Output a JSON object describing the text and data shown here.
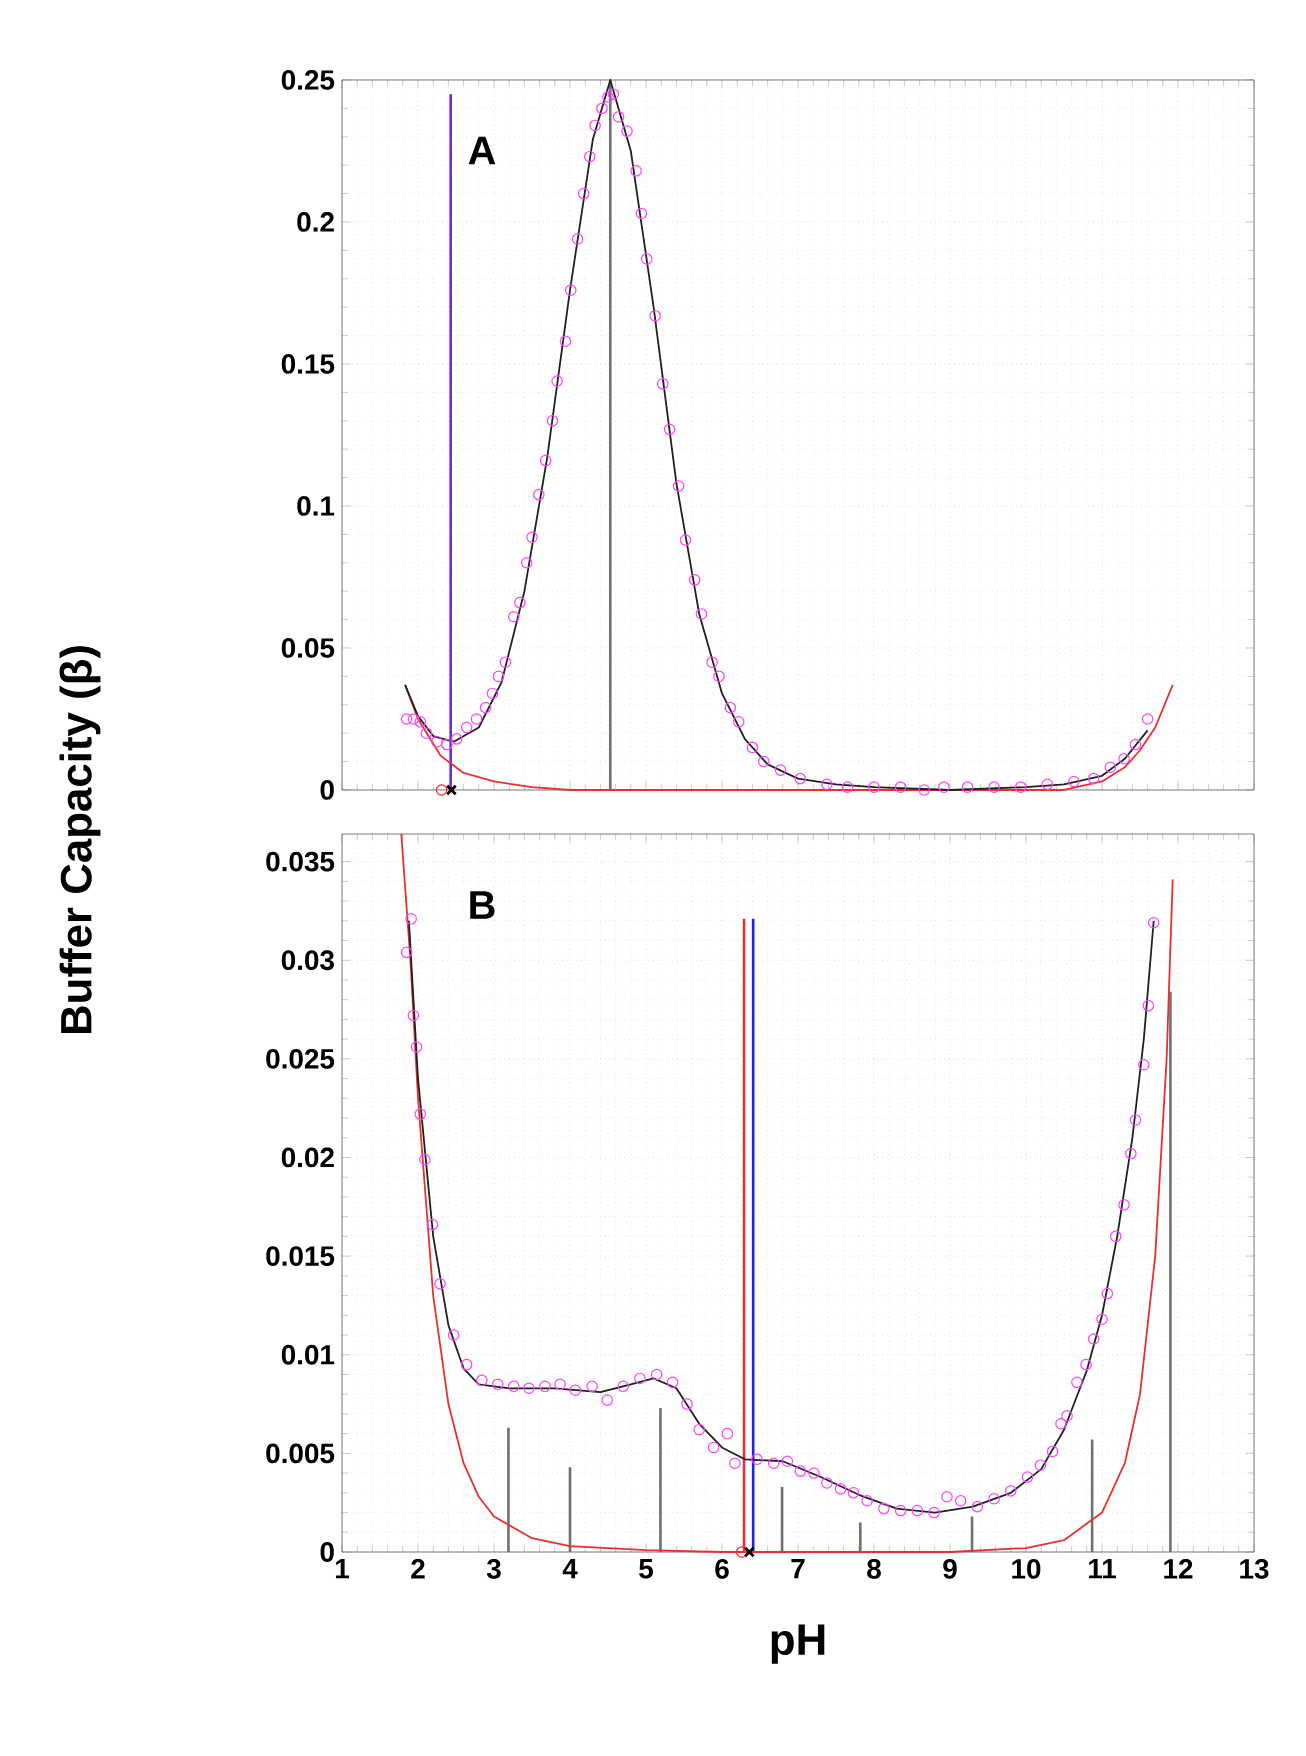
{
  "chart_data": [
    {
      "type": "scatter",
      "ylabel": "Buffer Capacity (β)",
      "annotations": [
        "A"
      ],
      "xlim": [
        1,
        13
      ],
      "ylim": [
        0,
        0.25
      ],
      "xticks": [
        1,
        2,
        3,
        4,
        5,
        6,
        7,
        8,
        9,
        10,
        11,
        12,
        13
      ],
      "yticks": [
        0,
        0.05,
        0.1,
        0.15,
        0.2,
        0.25
      ],
      "tick_labels": "y",
      "grid": true,
      "series": [
        {
          "type": "bar",
          "color": "#707070",
          "x": [
            4.53
          ],
          "values": [
            0.25
          ]
        },
        {
          "type": "bar",
          "color": "#6a30c8",
          "x": [
            2.43
          ],
          "values": [
            0.245
          ]
        },
        {
          "type": "line",
          "color": "#e83030",
          "x": [
            1.83,
            2.0,
            2.3,
            2.6,
            3.0,
            3.5,
            4.0,
            5.0,
            6.0,
            7.0,
            8.0,
            9.0,
            10.0,
            10.5,
            11.0,
            11.3,
            11.5,
            11.7,
            11.93
          ],
          "values": [
            0.037,
            0.025,
            0.012,
            0.006,
            0.003,
            0.001,
            0,
            0,
            0,
            0,
            0,
            0,
            0,
            0,
            0.003,
            0.008,
            0.014,
            0.022,
            0.037
          ]
        },
        {
          "type": "line",
          "color": "#202020",
          "x": [
            1.83,
            2.0,
            2.2,
            2.47,
            2.8,
            3.1,
            3.4,
            3.7,
            4.0,
            4.3,
            4.53,
            4.8,
            5.1,
            5.4,
            5.7,
            6.0,
            6.3,
            6.6,
            7.0,
            7.5,
            8.0,
            9.0,
            10.0,
            10.5,
            11.0,
            11.3,
            11.6
          ],
          "values": [
            0.037,
            0.026,
            0.019,
            0.017,
            0.022,
            0.038,
            0.07,
            0.117,
            0.176,
            0.229,
            0.25,
            0.225,
            0.17,
            0.108,
            0.062,
            0.034,
            0.018,
            0.009,
            0.004,
            0.002,
            0.001,
            0,
            0.001,
            0.002,
            0.005,
            0.011,
            0.021
          ]
        },
        {
          "marker": "circle",
          "color": "#ff40ff",
          "x": [
            1.85,
            1.94,
            2.03,
            2.11,
            2.25,
            2.38,
            2.51,
            2.64,
            2.77,
            2.89,
            2.98,
            3.06,
            3.15,
            3.26,
            3.34,
            3.43,
            3.5,
            3.59,
            3.68,
            3.77,
            3.83,
            3.94,
            4.01,
            4.1,
            4.18,
            4.26,
            4.33,
            4.42,
            4.5,
            4.57,
            4.64,
            4.75,
            4.87,
            4.94,
            5.01,
            5.12,
            5.22,
            5.31,
            5.43,
            5.52,
            5.64,
            5.73,
            5.87,
            5.96,
            6.11,
            6.22,
            6.4,
            6.55,
            6.77,
            7.03,
            7.38,
            7.65,
            8.0,
            8.35,
            8.66,
            8.92,
            9.23,
            9.58,
            9.93,
            10.28,
            10.63,
            10.89,
            11.11,
            11.29,
            11.44,
            11.6
          ],
          "values": [
            0.025,
            0.025,
            0.024,
            0.02,
            0.017,
            0.016,
            0.018,
            0.022,
            0.025,
            0.029,
            0.034,
            0.04,
            0.045,
            0.061,
            0.066,
            0.08,
            0.089,
            0.104,
            0.116,
            0.13,
            0.144,
            0.158,
            0.176,
            0.194,
            0.21,
            0.223,
            0.234,
            0.24,
            0.244,
            0.245,
            0.237,
            0.232,
            0.218,
            0.203,
            0.187,
            0.167,
            0.143,
            0.127,
            0.107,
            0.088,
            0.074,
            0.062,
            0.045,
            0.04,
            0.029,
            0.024,
            0.015,
            0.01,
            0.007,
            0.004,
            0.002,
            0.001,
            0.001,
            0.001,
            0,
            0.001,
            0.001,
            0.001,
            0.001,
            0.002,
            0.003,
            0.004,
            0.008,
            0.011,
            0.016,
            0.025
          ]
        },
        {
          "marker": "circle",
          "color": "#ff2020",
          "x": [
            2.31
          ],
          "values": [
            0
          ]
        },
        {
          "marker": "cross",
          "color": "#000000",
          "x": [
            2.44
          ],
          "values": [
            0
          ]
        }
      ]
    },
    {
      "type": "scatter",
      "xlabel": "pH",
      "annotations": [
        "B"
      ],
      "xlim": [
        1,
        13
      ],
      "ylim": [
        0,
        0.0364
      ],
      "xticks": [
        1,
        2,
        3,
        4,
        5,
        6,
        7,
        8,
        9,
        10,
        11,
        12,
        13
      ],
      "yticks": [
        0,
        0.005,
        0.01,
        0.015,
        0.02,
        0.025,
        0.03,
        0.035
      ],
      "grid": true,
      "series": [
        {
          "type": "bar",
          "color": "#707070",
          "x": [
            3.19,
            4.0,
            5.19,
            6.79,
            7.82,
            9.29,
            10.87,
            11.9
          ],
          "values": [
            0.0063,
            0.0043,
            0.0073,
            0.0033,
            0.0015,
            0.0018,
            0.0057,
            0.0284
          ]
        },
        {
          "type": "bar",
          "color": "#e83030",
          "x": [
            6.29
          ],
          "values": [
            0.0321
          ]
        },
        {
          "type": "bar",
          "color": "#2020e8",
          "x": [
            6.41
          ],
          "values": [
            0.0321
          ]
        },
        {
          "type": "line",
          "color": "#e83030",
          "x": [
            1.78,
            1.9,
            2.0,
            2.2,
            2.4,
            2.6,
            2.8,
            3.0,
            3.5,
            4.0,
            5.0,
            6.0,
            9.0,
            10.0,
            10.5,
            11.0,
            11.3,
            11.5,
            11.7,
            11.85,
            11.93
          ],
          "values": [
            0.0364,
            0.03,
            0.023,
            0.013,
            0.0075,
            0.0045,
            0.0028,
            0.0018,
            0.0007,
            0.0003,
            0.0001,
            0,
            0,
            0.0002,
            0.0006,
            0.002,
            0.0045,
            0.008,
            0.015,
            0.025,
            0.0341
          ]
        },
        {
          "type": "line",
          "color": "#202020",
          "x": [
            1.88,
            2.0,
            2.2,
            2.4,
            2.6,
            2.8,
            3.2,
            3.8,
            4.4,
            4.8,
            5.1,
            5.4,
            5.7,
            6.0,
            6.3,
            6.8,
            7.3,
            7.8,
            8.3,
            8.8,
            9.3,
            9.8,
            10.2,
            10.5,
            10.8,
            11.0,
            11.2,
            11.4,
            11.55,
            11.68
          ],
          "values": [
            0.032,
            0.024,
            0.016,
            0.0115,
            0.0093,
            0.0085,
            0.0083,
            0.0083,
            0.0081,
            0.0085,
            0.0088,
            0.0083,
            0.0065,
            0.0053,
            0.0047,
            0.0046,
            0.0038,
            0.0029,
            0.0022,
            0.002,
            0.0023,
            0.003,
            0.0042,
            0.0062,
            0.0092,
            0.012,
            0.016,
            0.021,
            0.026,
            0.032
          ]
        },
        {
          "marker": "circle",
          "color": "#ff40ff",
          "x": [
            1.85,
            1.91,
            1.94,
            1.98,
            2.03,
            2.09,
            2.19,
            2.29,
            2.47,
            2.64,
            2.84,
            3.05,
            3.26,
            3.46,
            3.67,
            3.87,
            4.07,
            4.29,
            4.49,
            4.7,
            4.92,
            5.14,
            5.35,
            5.54,
            5.7,
            5.89,
            6.07,
            6.17,
            6.46,
            6.68,
            6.86,
            7.03,
            7.21,
            7.38,
            7.56,
            7.73,
            7.91,
            8.13,
            8.35,
            8.57,
            8.79,
            8.96,
            9.14,
            9.36,
            9.58,
            9.8,
            10.02,
            10.19,
            10.35,
            10.46,
            10.54,
            10.67,
            10.79,
            10.89,
            11.0,
            11.07,
            11.18,
            11.29,
            11.38,
            11.44,
            11.55,
            11.61,
            11.68
          ],
          "values": [
            0.0304,
            0.0321,
            0.0272,
            0.0256,
            0.0222,
            0.0199,
            0.0166,
            0.0136,
            0.011,
            0.0095,
            0.0087,
            0.0085,
            0.0084,
            0.0083,
            0.0084,
            0.0085,
            0.0082,
            0.0084,
            0.0077,
            0.0084,
            0.0088,
            0.009,
            0.0086,
            0.0075,
            0.0062,
            0.0053,
            0.006,
            0.0045,
            0.0047,
            0.0045,
            0.0046,
            0.0041,
            0.004,
            0.0035,
            0.0032,
            0.003,
            0.0026,
            0.0022,
            0.0021,
            0.0021,
            0.002,
            0.0028,
            0.0026,
            0.0023,
            0.0027,
            0.0031,
            0.0038,
            0.0044,
            0.0051,
            0.0065,
            0.0069,
            0.0086,
            0.0095,
            0.0108,
            0.0118,
            0.0131,
            0.016,
            0.0176,
            0.0202,
            0.0219,
            0.0247,
            0.0277,
            0.0319
          ]
        },
        {
          "marker": "circle",
          "color": "#ff2020",
          "x": [
            6.26
          ],
          "values": [
            0
          ]
        },
        {
          "marker": "cross",
          "color": "#000000",
          "x": [
            6.36
          ],
          "values": [
            0
          ]
        }
      ]
    }
  ]
}
